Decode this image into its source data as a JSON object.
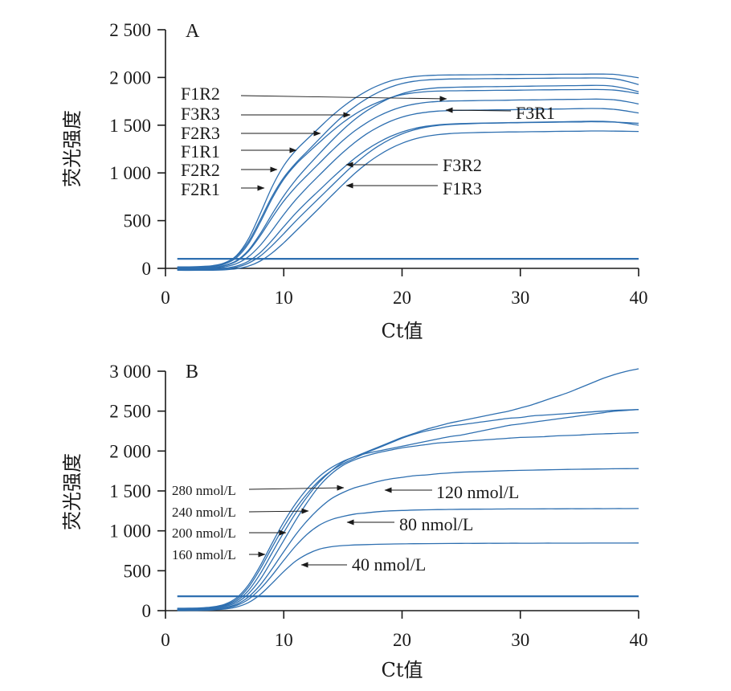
{
  "chart_data": [
    {
      "panel": "A",
      "type": "line",
      "xlabel": "Ct值",
      "ylabel": "荧光强度",
      "xlim": [
        0,
        40
      ],
      "ylim": [
        0,
        2500
      ],
      "xticks": [
        "0",
        "10",
        "20",
        "30",
        "40"
      ],
      "yticks": [
        "0",
        "500",
        "1 000",
        "1 500",
        "2 000",
        "2 500"
      ],
      "x": [
        1,
        2,
        3,
        4,
        5,
        6,
        7,
        8,
        9,
        10,
        11,
        12,
        13,
        14,
        15,
        16,
        17,
        18,
        19,
        20,
        21,
        22,
        23,
        24,
        25,
        26,
        27,
        28,
        29,
        30,
        31,
        32,
        33,
        34,
        35,
        36,
        37,
        38,
        39,
        40
      ],
      "threshold": 100,
      "series": [
        {
          "name": "F2R1",
          "values": [
            15,
            16,
            20,
            29,
            58,
            134,
            306,
            569,
            850,
            1076,
            1234,
            1356,
            1473,
            1589,
            1693,
            1782,
            1857,
            1917,
            1962,
            1991,
            2009,
            2019,
            2024,
            2026,
            2027,
            2028,
            2029,
            2030,
            2030,
            2031,
            2032,
            2032,
            2033,
            2034,
            2034,
            2035,
            2035,
            2032,
            2016,
            1997
          ]
        },
        {
          "name": "F2R2",
          "values": [
            10,
            11,
            15,
            26,
            55,
            126,
            277,
            506,
            751,
            952,
            1101,
            1227,
            1354,
            1481,
            1596,
            1694,
            1777,
            1845,
            1898,
            1936,
            1960,
            1973,
            1980,
            1984,
            1985,
            1986,
            1987,
            1988,
            1989,
            1990,
            1991,
            1992,
            1993,
            1994,
            1994,
            1995,
            1994,
            1985,
            1960,
            1925
          ]
        },
        {
          "name": "F1R1",
          "values": [
            5,
            6,
            10,
            19,
            46,
            112,
            255,
            480,
            727,
            934,
            1086,
            1205,
            1318,
            1428,
            1528,
            1614,
            1685,
            1742,
            1787,
            1819,
            1839,
            1851,
            1857,
            1860,
            1861,
            1863,
            1864,
            1865,
            1866,
            1867,
            1869,
            1870,
            1871,
            1872,
            1873,
            1874,
            1873,
            1867,
            1851,
            1831
          ]
        },
        {
          "name": "F2R3",
          "values": [
            0,
            1,
            4,
            11,
            31,
            81,
            188,
            361,
            566,
            760,
            925,
            1067,
            1200,
            1330,
            1452,
            1559,
            1649,
            1723,
            1785,
            1830,
            1861,
            1880,
            1891,
            1896,
            1899,
            1901,
            1903,
            1904,
            1906,
            1907,
            1909,
            1911,
            1912,
            1914,
            1915,
            1917,
            1916,
            1906,
            1881,
            1850
          ]
        },
        {
          "name": "F3R3",
          "values": [
            -5,
            -4,
            -1,
            7,
            27,
            74,
            177,
            339,
            529,
            705,
            851,
            977,
            1100,
            1224,
            1339,
            1440,
            1524,
            1594,
            1650,
            1692,
            1720,
            1738,
            1748,
            1753,
            1755,
            1757,
            1759,
            1760,
            1762,
            1764,
            1765,
            1767,
            1769,
            1770,
            1771,
            1773,
            1772,
            1765,
            1747,
            1722
          ]
        },
        {
          "name": "F1R2",
          "values": [
            -5,
            -5,
            -3,
            2,
            16,
            50,
            121,
            240,
            396,
            564,
            717,
            851,
            975,
            1098,
            1214,
            1318,
            1408,
            1481,
            1540,
            1584,
            1615,
            1635,
            1647,
            1653,
            1656,
            1658,
            1659,
            1661,
            1662,
            1664,
            1666,
            1668,
            1669,
            1671,
            1673,
            1675,
            1673,
            1665,
            1648,
            1628
          ]
        },
        {
          "name": "F3R1",
          "values": [
            -10,
            -10,
            -9,
            -6,
            2,
            24,
            74,
            164,
            292,
            437,
            576,
            701,
            818,
            936,
            1049,
            1153,
            1243,
            1319,
            1381,
            1429,
            1464,
            1488,
            1503,
            1512,
            1517,
            1520,
            1522,
            1524,
            1527,
            1529,
            1531,
            1533,
            1535,
            1537,
            1539,
            1541,
            1540,
            1534,
            1519,
            1500
          ]
        },
        {
          "name": "F3R2",
          "values": [
            -15,
            -16,
            -15,
            -13,
            -6,
            12,
            54,
            128,
            237,
            364,
            494,
            617,
            737,
            859,
            980,
            1094,
            1195,
            1282,
            1353,
            1409,
            1450,
            1479,
            1497,
            1507,
            1513,
            1517,
            1520,
            1522,
            1524,
            1526,
            1528,
            1529,
            1531,
            1533,
            1534,
            1536,
            1535,
            1532,
            1527,
            1520
          ]
        },
        {
          "name": "F1R3",
          "values": [
            -20,
            -21,
            -20,
            -19,
            -15,
            -4,
            23,
            76,
            160,
            268,
            388,
            509,
            631,
            756,
            878,
            994,
            1096,
            1183,
            1255,
            1311,
            1353,
            1382,
            1401,
            1412,
            1418,
            1422,
            1425,
            1427,
            1429,
            1430,
            1432,
            1433,
            1435,
            1436,
            1437,
            1439,
            1439,
            1438,
            1436,
            1434
          ]
        }
      ],
      "annotations": [
        "F1R2",
        "F3R3",
        "F2R3",
        "F1R1",
        "F2R2",
        "F2R1",
        "F3R1",
        "F3R2",
        "F1R3"
      ]
    },
    {
      "panel": "B",
      "type": "line",
      "xlabel": "Ct值",
      "ylabel": "荧光强度",
      "xlim": [
        0,
        40
      ],
      "ylim": [
        0,
        3000
      ],
      "xticks": [
        "0",
        "10",
        "20",
        "30",
        "40"
      ],
      "yticks": [
        "0",
        "500",
        "1 000",
        "1 500",
        "2 000",
        "2 500",
        "3 000"
      ],
      "x": [
        1,
        2,
        3,
        4,
        5,
        6,
        7,
        8,
        9,
        10,
        11,
        12,
        13,
        14,
        15,
        16,
        17,
        18,
        19,
        20,
        21,
        22,
        23,
        24,
        25,
        26,
        27,
        28,
        29,
        30,
        31,
        32,
        33,
        34,
        35,
        36,
        37,
        38,
        39,
        40
      ],
      "threshold": 180,
      "series": [
        {
          "name": "280 nmol/L",
          "values": [
            30,
            31,
            35,
            47,
            80,
            160,
            320,
            560,
            840,
            1110,
            1340,
            1530,
            1680,
            1790,
            1870,
            1930,
            1990,
            2050,
            2110,
            2170,
            2220,
            2270,
            2310,
            2350,
            2380,
            2410,
            2440,
            2470,
            2500,
            2540,
            2580,
            2630,
            2680,
            2730,
            2790,
            2850,
            2910,
            2960,
            3000,
            3030
          ]
        },
        {
          "name": "240 nmol/L",
          "values": [
            25,
            26,
            30,
            40,
            70,
            140,
            290,
            520,
            790,
            1050,
            1280,
            1470,
            1630,
            1750,
            1840,
            1910,
            1980,
            2040,
            2100,
            2160,
            2210,
            2250,
            2280,
            2310,
            2330,
            2350,
            2370,
            2390,
            2410,
            2420,
            2440,
            2450,
            2460,
            2470,
            2480,
            2490,
            2500,
            2510,
            2515,
            2520
          ]
        },
        {
          "name": "200 nmol/L",
          "values": [
            20,
            21,
            24,
            34,
            60,
            120,
            250,
            460,
            720,
            980,
            1220,
            1430,
            1610,
            1750,
            1860,
            1930,
            1970,
            2000,
            2030,
            2060,
            2090,
            2120,
            2150,
            2180,
            2200,
            2230,
            2260,
            2290,
            2320,
            2340,
            2360,
            2380,
            2400,
            2420,
            2440,
            2460,
            2480,
            2500,
            2510,
            2520
          ]
        },
        {
          "name": "160 nmol/L",
          "values": [
            15,
            16,
            19,
            28,
            50,
            100,
            210,
            390,
            630,
            880,
            1130,
            1360,
            1560,
            1710,
            1820,
            1890,
            1940,
            1980,
            2010,
            2040,
            2060,
            2080,
            2100,
            2110,
            2120,
            2130,
            2140,
            2150,
            2160,
            2170,
            2175,
            2180,
            2190,
            2195,
            2200,
            2210,
            2215,
            2220,
            2225,
            2230
          ]
        },
        {
          "name": "120 nmol/L",
          "values": [
            10,
            11,
            13,
            20,
            38,
            80,
            170,
            320,
            520,
            740,
            950,
            1130,
            1280,
            1400,
            1480,
            1540,
            1580,
            1620,
            1650,
            1670,
            1690,
            1700,
            1715,
            1725,
            1735,
            1740,
            1745,
            1750,
            1755,
            1758,
            1761,
            1764,
            1767,
            1770,
            1772,
            1774,
            1776,
            1778,
            1779,
            1780
          ]
        },
        {
          "name": "80 nmol/L",
          "values": [
            5,
            6,
            8,
            14,
            30,
            65,
            140,
            270,
            440,
            630,
            810,
            960,
            1070,
            1140,
            1180,
            1210,
            1225,
            1240,
            1250,
            1255,
            1260,
            1263,
            1266,
            1268,
            1270,
            1271,
            1272,
            1273,
            1274,
            1275,
            1275,
            1276,
            1276,
            1277,
            1277,
            1278,
            1278,
            1279,
            1279,
            1280
          ]
        },
        {
          "name": "40 nmol/L",
          "values": [
            0,
            1,
            3,
            8,
            20,
            45,
            100,
            200,
            340,
            490,
            620,
            710,
            770,
            800,
            815,
            823,
            828,
            832,
            835,
            837,
            839,
            840,
            841,
            842,
            843,
            843,
            844,
            844,
            845,
            845,
            845,
            846,
            846,
            846,
            846,
            847,
            847,
            847,
            847,
            848
          ]
        }
      ],
      "annotations": [
        "280 nmol/L",
        "240 nmol/L",
        "200 nmol/L",
        "160 nmol/L",
        "120 nmol/L",
        "80 nmol/L",
        "40 nmol/L"
      ]
    }
  ]
}
